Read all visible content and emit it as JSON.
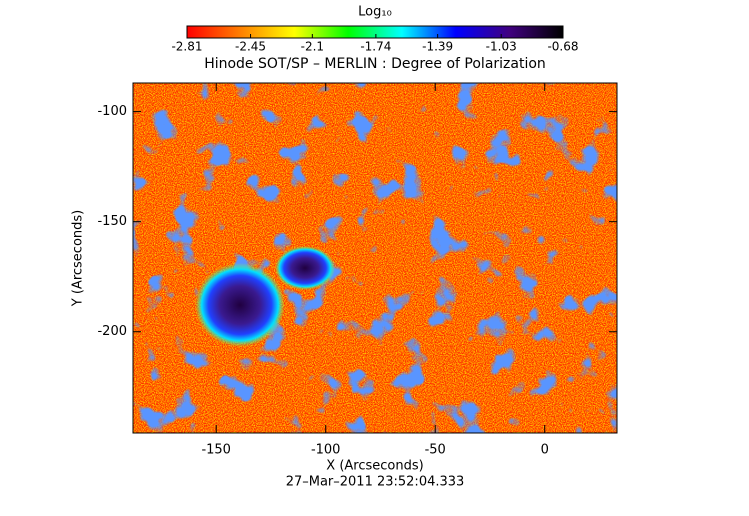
{
  "chart_data": {
    "type": "image",
    "title": "Hinode SOT/SP – MERLIN : Degree of Polarization",
    "x_label": "X (Arcseconds)",
    "y_label": "Y (Arcseconds)",
    "footer": "27–Mar–2011 23:52:04.333",
    "xlim": [
      -188,
      33
    ],
    "xticks": [
      -150,
      -100,
      -50,
      0
    ],
    "ylim": [
      -246,
      -87
    ],
    "yticks": [
      -100,
      -150,
      -200
    ],
    "colorbar": {
      "label": "Log₁₀",
      "lim": [
        -2.81,
        -0.68
      ],
      "ticks": [
        -2.81,
        -2.45,
        -2.1,
        -1.74,
        -1.39,
        -1.03,
        -0.68
      ],
      "colors": [
        "#ff0000",
        "#ff8000",
        "#ffff00",
        "#00ff00",
        "#00ffff",
        "#0000ff",
        "#400080",
        "#000000"
      ]
    }
  }
}
